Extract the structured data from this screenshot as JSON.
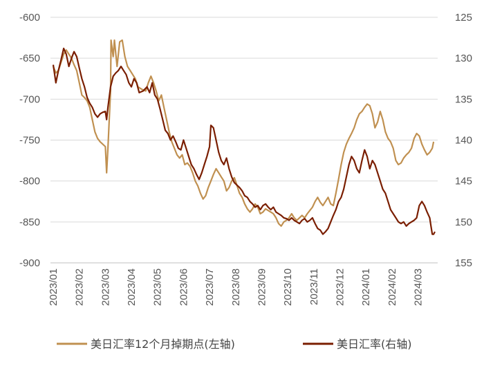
{
  "chart_data": {
    "type": "line",
    "title": "",
    "xlabel": "",
    "y_left": {
      "ylim": [
        -900,
        -600
      ],
      "ticks": [
        -600,
        -650,
        -700,
        -750,
        -800,
        -850,
        -900
      ]
    },
    "y_right": {
      "ylim": [
        125,
        155
      ],
      "reversed": true,
      "ticks": [
        125,
        130,
        135,
        140,
        145,
        150,
        155
      ]
    },
    "x_ticks": [
      "2023/01",
      "2023/02",
      "2023/03",
      "2023/04",
      "2023/05",
      "2023/06",
      "2023/07",
      "2023/08",
      "2023/09",
      "2023/10",
      "2023/11",
      "2023/12",
      "2024/01",
      "2024/02",
      "2024/03"
    ],
    "x_range": [
      0,
      14.65
    ],
    "grid": "horizontal",
    "legend_position": "bottom",
    "series": [
      {
        "name": "美日汇率12个月掉期点(左轴)",
        "axis": "left",
        "color": "#c09050",
        "points": [
          [
            0.0,
            -660
          ],
          [
            0.1,
            -668
          ],
          [
            0.2,
            -665
          ],
          [
            0.3,
            -655
          ],
          [
            0.4,
            -645
          ],
          [
            0.5,
            -640
          ],
          [
            0.6,
            -645
          ],
          [
            0.7,
            -650
          ],
          [
            0.8,
            -658
          ],
          [
            0.9,
            -665
          ],
          [
            1.0,
            -680
          ],
          [
            1.1,
            -695
          ],
          [
            1.2,
            -698
          ],
          [
            1.3,
            -702
          ],
          [
            1.4,
            -710
          ],
          [
            1.5,
            -725
          ],
          [
            1.6,
            -740
          ],
          [
            1.7,
            -748
          ],
          [
            1.8,
            -752
          ],
          [
            1.9,
            -755
          ],
          [
            2.0,
            -758
          ],
          [
            2.05,
            -790
          ],
          [
            2.1,
            -760
          ],
          [
            2.2,
            -690
          ],
          [
            2.22,
            -628
          ],
          [
            2.3,
            -648
          ],
          [
            2.35,
            -628
          ],
          [
            2.45,
            -660
          ],
          [
            2.55,
            -630
          ],
          [
            2.65,
            -628
          ],
          [
            2.75,
            -648
          ],
          [
            2.85,
            -660
          ],
          [
            2.95,
            -665
          ],
          [
            3.05,
            -670
          ],
          [
            3.15,
            -675
          ],
          [
            3.25,
            -685
          ],
          [
            3.4,
            -688
          ],
          [
            3.55,
            -690
          ],
          [
            3.65,
            -680
          ],
          [
            3.75,
            -672
          ],
          [
            3.85,
            -680
          ],
          [
            3.95,
            -690
          ],
          [
            4.05,
            -702
          ],
          [
            4.15,
            -695
          ],
          [
            4.25,
            -710
          ],
          [
            4.35,
            -725
          ],
          [
            4.45,
            -740
          ],
          [
            4.55,
            -752
          ],
          [
            4.65,
            -760
          ],
          [
            4.75,
            -768
          ],
          [
            4.85,
            -772
          ],
          [
            4.95,
            -768
          ],
          [
            5.05,
            -780
          ],
          [
            5.15,
            -778
          ],
          [
            5.25,
            -782
          ],
          [
            5.35,
            -790
          ],
          [
            5.45,
            -800
          ],
          [
            5.55,
            -806
          ],
          [
            5.65,
            -815
          ],
          [
            5.75,
            -822
          ],
          [
            5.85,
            -818
          ],
          [
            5.95,
            -808
          ],
          [
            6.05,
            -800
          ],
          [
            6.15,
            -792
          ],
          [
            6.25,
            -785
          ],
          [
            6.35,
            -790
          ],
          [
            6.45,
            -795
          ],
          [
            6.55,
            -800
          ],
          [
            6.65,
            -812
          ],
          [
            6.75,
            -808
          ],
          [
            6.85,
            -800
          ],
          [
            6.95,
            -796
          ],
          [
            7.05,
            -805
          ],
          [
            7.15,
            -815
          ],
          [
            7.25,
            -820
          ],
          [
            7.35,
            -828
          ],
          [
            7.45,
            -834
          ],
          [
            7.55,
            -838
          ],
          [
            7.65,
            -834
          ],
          [
            7.75,
            -828
          ],
          [
            7.85,
            -832
          ],
          [
            7.95,
            -840
          ],
          [
            8.05,
            -838
          ],
          [
            8.15,
            -834
          ],
          [
            8.25,
            -836
          ],
          [
            8.35,
            -838
          ],
          [
            8.45,
            -840
          ],
          [
            8.55,
            -845
          ],
          [
            8.65,
            -852
          ],
          [
            8.75,
            -855
          ],
          [
            8.85,
            -850
          ],
          [
            8.95,
            -848
          ],
          [
            9.05,
            -845
          ],
          [
            9.15,
            -840
          ],
          [
            9.25,
            -845
          ],
          [
            9.35,
            -848
          ],
          [
            9.45,
            -845
          ],
          [
            9.55,
            -842
          ],
          [
            9.65,
            -845
          ],
          [
            9.75,
            -840
          ],
          [
            9.85,
            -836
          ],
          [
            9.95,
            -832
          ],
          [
            10.05,
            -825
          ],
          [
            10.15,
            -820
          ],
          [
            10.25,
            -826
          ],
          [
            10.35,
            -830
          ],
          [
            10.45,
            -825
          ],
          [
            10.55,
            -820
          ],
          [
            10.65,
            -828
          ],
          [
            10.75,
            -830
          ],
          [
            10.85,
            -815
          ],
          [
            10.95,
            -798
          ],
          [
            11.05,
            -780
          ],
          [
            11.15,
            -765
          ],
          [
            11.25,
            -755
          ],
          [
            11.35,
            -748
          ],
          [
            11.45,
            -742
          ],
          [
            11.55,
            -735
          ],
          [
            11.65,
            -725
          ],
          [
            11.75,
            -718
          ],
          [
            11.85,
            -715
          ],
          [
            11.95,
            -710
          ],
          [
            12.05,
            -706
          ],
          [
            12.15,
            -708
          ],
          [
            12.25,
            -718
          ],
          [
            12.35,
            -735
          ],
          [
            12.45,
            -728
          ],
          [
            12.55,
            -715
          ],
          [
            12.65,
            -725
          ],
          [
            12.75,
            -740
          ],
          [
            12.85,
            -748
          ],
          [
            12.95,
            -752
          ],
          [
            13.05,
            -760
          ],
          [
            13.15,
            -775
          ],
          [
            13.25,
            -780
          ],
          [
            13.35,
            -778
          ],
          [
            13.45,
            -772
          ],
          [
            13.55,
            -768
          ],
          [
            13.65,
            -765
          ],
          [
            13.75,
            -760
          ],
          [
            13.85,
            -748
          ],
          [
            13.95,
            -742
          ],
          [
            14.05,
            -745
          ],
          [
            14.15,
            -755
          ],
          [
            14.25,
            -762
          ],
          [
            14.35,
            -768
          ],
          [
            14.45,
            -765
          ],
          [
            14.55,
            -760
          ],
          [
            14.6,
            -752
          ]
        ]
      },
      {
        "name": "美日汇率(右轴)",
        "axis": "right",
        "color": "#7a1e00",
        "points": [
          [
            0.0,
            130.8
          ],
          [
            0.1,
            133.0
          ],
          [
            0.2,
            131.5
          ],
          [
            0.3,
            130.2
          ],
          [
            0.4,
            128.8
          ],
          [
            0.5,
            129.5
          ],
          [
            0.6,
            131.0
          ],
          [
            0.7,
            130.0
          ],
          [
            0.8,
            129.2
          ],
          [
            0.9,
            129.8
          ],
          [
            1.0,
            131.2
          ],
          [
            1.1,
            132.5
          ],
          [
            1.2,
            133.5
          ],
          [
            1.3,
            134.8
          ],
          [
            1.4,
            135.5
          ],
          [
            1.5,
            136.0
          ],
          [
            1.6,
            136.8
          ],
          [
            1.7,
            137.2
          ],
          [
            1.8,
            136.8
          ],
          [
            1.9,
            136.6
          ],
          [
            2.0,
            136.5
          ],
          [
            2.05,
            137.5
          ],
          [
            2.1,
            136.0
          ],
          [
            2.2,
            133.5
          ],
          [
            2.3,
            132.2
          ],
          [
            2.4,
            131.8
          ],
          [
            2.5,
            131.5
          ],
          [
            2.6,
            131.0
          ],
          [
            2.7,
            131.5
          ],
          [
            2.8,
            132.0
          ],
          [
            2.9,
            133.0
          ],
          [
            3.0,
            133.5
          ],
          [
            3.1,
            132.5
          ],
          [
            3.2,
            133.0
          ],
          [
            3.3,
            134.2
          ],
          [
            3.45,
            134.0
          ],
          [
            3.6,
            133.5
          ],
          [
            3.7,
            134.2
          ],
          [
            3.8,
            133.0
          ],
          [
            3.9,
            134.5
          ],
          [
            4.0,
            135.0
          ],
          [
            4.1,
            136.2
          ],
          [
            4.2,
            137.5
          ],
          [
            4.3,
            138.8
          ],
          [
            4.4,
            139.2
          ],
          [
            4.5,
            140.0
          ],
          [
            4.6,
            139.5
          ],
          [
            4.7,
            140.2
          ],
          [
            4.8,
            141.0
          ],
          [
            4.9,
            141.2
          ],
          [
            5.0,
            140.0
          ],
          [
            5.1,
            141.0
          ],
          [
            5.2,
            142.0
          ],
          [
            5.3,
            143.0
          ],
          [
            5.4,
            143.5
          ],
          [
            5.5,
            144.2
          ],
          [
            5.6,
            144.8
          ],
          [
            5.7,
            144.0
          ],
          [
            5.8,
            143.0
          ],
          [
            5.9,
            142.0
          ],
          [
            6.0,
            140.8
          ],
          [
            6.05,
            138.2
          ],
          [
            6.15,
            138.5
          ],
          [
            6.25,
            140.0
          ],
          [
            6.35,
            141.5
          ],
          [
            6.45,
            142.5
          ],
          [
            6.55,
            143.0
          ],
          [
            6.65,
            142.2
          ],
          [
            6.75,
            143.5
          ],
          [
            6.85,
            144.5
          ],
          [
            6.95,
            145.2
          ],
          [
            7.05,
            145.5
          ],
          [
            7.15,
            145.8
          ],
          [
            7.25,
            146.2
          ],
          [
            7.35,
            146.8
          ],
          [
            7.45,
            147.0
          ],
          [
            7.55,
            147.5
          ],
          [
            7.65,
            147.8
          ],
          [
            7.75,
            148.2
          ],
          [
            7.85,
            148.0
          ],
          [
            7.95,
            148.5
          ],
          [
            8.05,
            148.0
          ],
          [
            8.15,
            147.8
          ],
          [
            8.25,
            148.2
          ],
          [
            8.35,
            148.5
          ],
          [
            8.45,
            148.2
          ],
          [
            8.55,
            148.8
          ],
          [
            8.65,
            149.0
          ],
          [
            8.75,
            149.2
          ],
          [
            8.85,
            149.5
          ],
          [
            8.95,
            149.6
          ],
          [
            9.05,
            149.8
          ],
          [
            9.15,
            149.5
          ],
          [
            9.25,
            149.8
          ],
          [
            9.35,
            150.0
          ],
          [
            9.45,
            150.2
          ],
          [
            9.55,
            149.8
          ],
          [
            9.65,
            149.6
          ],
          [
            9.75,
            150.0
          ],
          [
            9.85,
            149.8
          ],
          [
            9.95,
            149.5
          ],
          [
            10.05,
            150.2
          ],
          [
            10.15,
            150.8
          ],
          [
            10.25,
            151.0
          ],
          [
            10.35,
            151.5
          ],
          [
            10.45,
            151.2
          ],
          [
            10.55,
            150.8
          ],
          [
            10.65,
            150.0
          ],
          [
            10.75,
            149.2
          ],
          [
            10.85,
            148.5
          ],
          [
            10.95,
            147.5
          ],
          [
            11.05,
            147.0
          ],
          [
            11.15,
            146.0
          ],
          [
            11.25,
            144.5
          ],
          [
            11.35,
            143.0
          ],
          [
            11.45,
            142.0
          ],
          [
            11.55,
            142.5
          ],
          [
            11.65,
            143.5
          ],
          [
            11.75,
            144.0
          ],
          [
            11.85,
            142.5
          ],
          [
            11.95,
            141.2
          ],
          [
            12.05,
            142.0
          ],
          [
            12.15,
            143.5
          ],
          [
            12.25,
            142.5
          ],
          [
            12.35,
            143.0
          ],
          [
            12.45,
            144.0
          ],
          [
            12.55,
            145.0
          ],
          [
            12.65,
            146.0
          ],
          [
            12.75,
            146.5
          ],
          [
            12.85,
            147.5
          ],
          [
            12.95,
            148.5
          ],
          [
            13.05,
            149.0
          ],
          [
            13.15,
            149.5
          ],
          [
            13.25,
            150.0
          ],
          [
            13.35,
            150.2
          ],
          [
            13.45,
            150.0
          ],
          [
            13.55,
            150.5
          ],
          [
            13.65,
            150.2
          ],
          [
            13.75,
            150.0
          ],
          [
            13.85,
            149.8
          ],
          [
            13.95,
            149.5
          ],
          [
            14.05,
            148.0
          ],
          [
            14.15,
            147.5
          ],
          [
            14.25,
            148.0
          ],
          [
            14.35,
            148.8
          ],
          [
            14.45,
            149.5
          ],
          [
            14.5,
            150.5
          ],
          [
            14.55,
            151.5
          ],
          [
            14.6,
            151.5
          ],
          [
            14.65,
            151.2
          ]
        ]
      }
    ]
  }
}
